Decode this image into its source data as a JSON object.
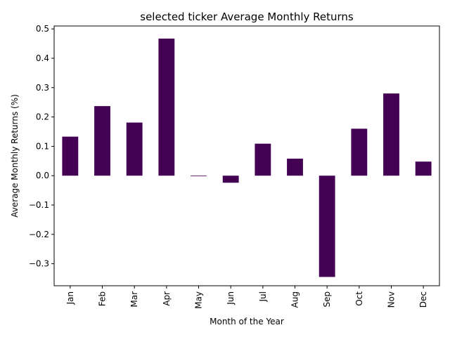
{
  "chart_data": {
    "type": "bar",
    "title": "selected ticker Average Monthly Returns",
    "xlabel": "Month of the Year",
    "ylabel": "Average Monthly Returns (%)",
    "categories": [
      "Jan",
      "Feb",
      "Mar",
      "Apr",
      "May",
      "Jun",
      "Jul",
      "Aug",
      "Sep",
      "Oct",
      "Nov",
      "Dec"
    ],
    "values": [
      0.133,
      0.237,
      0.181,
      0.467,
      -0.002,
      -0.024,
      0.109,
      0.058,
      -0.345,
      0.16,
      0.28,
      0.048
    ],
    "ylim": [
      -0.375,
      0.51
    ],
    "yticks": [
      -0.3,
      -0.2,
      -0.1,
      0.0,
      0.1,
      0.2,
      0.3,
      0.4,
      0.5
    ],
    "ytick_labels": [
      "−0.3",
      "−0.2",
      "−0.1",
      "0.0",
      "0.1",
      "0.2",
      "0.3",
      "0.4",
      "0.5"
    ],
    "grid": false,
    "legend": "none",
    "bar_color": "#440154"
  }
}
